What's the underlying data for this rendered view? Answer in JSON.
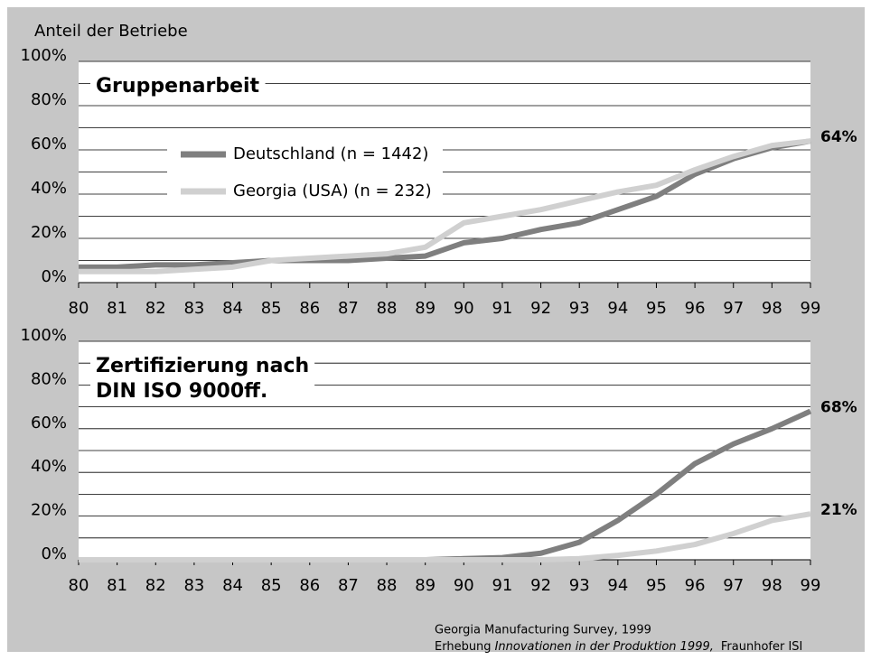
{
  "ylabel": "Anteil der Betriebe",
  "source": [
    "Georgia Manufacturing Survey, 1999",
    [
      "Erhebung",
      "Innovationen in der Produktion 1999,",
      "Fraunhofer ISI"
    ]
  ],
  "chart_data": [
    {
      "type": "line",
      "title": [
        "Gruppenarbeit"
      ],
      "categories": [
        "80",
        "81",
        "82",
        "83",
        "84",
        "85",
        "86",
        "87",
        "88",
        "89",
        "90",
        "91",
        "92",
        "93",
        "94",
        "95",
        "96",
        "97",
        "98",
        "99"
      ],
      "series": [
        {
          "name": "Deutschland (n = 1442)",
          "color": "#7f7f7f",
          "values": [
            7,
            7,
            8,
            8,
            9,
            10,
            10,
            10,
            11,
            12,
            18,
            20,
            24,
            27,
            33,
            39,
            49,
            56,
            61,
            64
          ],
          "value_labels": [
            null,
            null,
            null,
            null,
            null,
            null,
            null,
            null,
            null,
            null,
            null,
            null,
            null,
            null,
            null,
            null,
            null,
            null,
            null,
            "64%"
          ]
        },
        {
          "name": "Georgia (USA) (n = 232)",
          "color": "#d0d0d0",
          "values": [
            5,
            5,
            5,
            6,
            7,
            10,
            11,
            12,
            13,
            16,
            27,
            30,
            33,
            37,
            41,
            44,
            51,
            57,
            62,
            64
          ]
        }
      ],
      "ylim": [
        0,
        100
      ],
      "yticks": [
        {
          "value": 0,
          "label": "0%"
        },
        {
          "value": 20,
          "label": "20%"
        },
        {
          "value": 40,
          "label": "40%"
        },
        {
          "value": 60,
          "label": "60%"
        },
        {
          "value": 80,
          "label": "80%"
        },
        {
          "value": 100,
          "label": "100%"
        }
      ],
      "minor_yticks": [
        10,
        30,
        50,
        70,
        90
      ],
      "grid": true
    },
    {
      "type": "line",
      "title": [
        "Zertifizierung nach",
        "DIN ISO 9000ff."
      ],
      "categories": [
        "80",
        "81",
        "82",
        "83",
        "84",
        "85",
        "86",
        "87",
        "88",
        "89",
        "90",
        "91",
        "92",
        "93",
        "94",
        "95",
        "96",
        "97",
        "98",
        "99"
      ],
      "series": [
        {
          "color": "#7f7f7f",
          "values": [
            0,
            0,
            0,
            0,
            0,
            0,
            0,
            0,
            0,
            0,
            0.5,
            1,
            3,
            8,
            18,
            30,
            44,
            53,
            60,
            68
          ],
          "value_labels": [
            null,
            null,
            null,
            null,
            null,
            null,
            null,
            null,
            null,
            null,
            null,
            null,
            null,
            null,
            null,
            null,
            null,
            null,
            null,
            "68%"
          ]
        },
        {
          "color": "#d0d0d0",
          "values": [
            0,
            0,
            0,
            0,
            0,
            0,
            0,
            0,
            0,
            0,
            0,
            0,
            0,
            0.5,
            2,
            4,
            7,
            12,
            18,
            21
          ],
          "value_labels": [
            null,
            null,
            null,
            null,
            null,
            null,
            null,
            null,
            null,
            null,
            null,
            null,
            null,
            null,
            null,
            null,
            null,
            null,
            null,
            "21%"
          ]
        }
      ],
      "ylim": [
        0,
        100
      ],
      "yticks": [
        {
          "value": 0,
          "label": "0%"
        },
        {
          "value": 20,
          "label": "20%"
        },
        {
          "value": 40,
          "label": "40%"
        },
        {
          "value": 60,
          "label": "60%"
        },
        {
          "value": 80,
          "label": "80%"
        },
        {
          "value": 100,
          "label": "100%"
        }
      ],
      "minor_yticks": [
        10,
        30,
        50,
        70,
        90
      ],
      "grid": true
    }
  ]
}
